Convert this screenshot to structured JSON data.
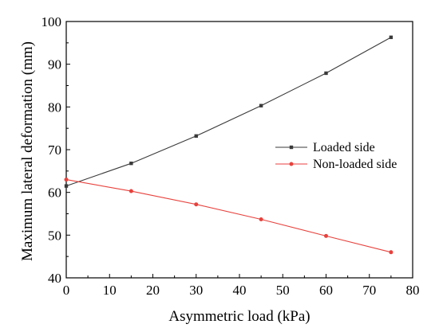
{
  "chart_data": {
    "type": "line",
    "title": "",
    "xlabel": "Asymmetric load (kPa)",
    "ylabel": "Maximum lateral deformation (mm)",
    "xlim": [
      0,
      80
    ],
    "ylim": [
      40,
      100
    ],
    "xticks": [
      "0",
      "10",
      "20",
      "30",
      "40",
      "50",
      "60",
      "70",
      "80"
    ],
    "yticks": [
      "40",
      "50",
      "60",
      "70",
      "80",
      "90",
      "100"
    ],
    "grid": false,
    "legend_position": "right-middle",
    "series": [
      {
        "name": "Loaded side",
        "color": "#3a3a3a",
        "marker": "square",
        "x": [
          0,
          15,
          30,
          45,
          60,
          75
        ],
        "y": [
          61.5,
          66.8,
          73.2,
          80.3,
          87.9,
          96.3
        ]
      },
      {
        "name": "Non-loaded side",
        "color": "#e8413c",
        "marker": "circle",
        "x": [
          0,
          15,
          30,
          45,
          60,
          75
        ],
        "y": [
          63.0,
          60.3,
          57.2,
          53.7,
          49.8,
          46.0
        ]
      }
    ]
  }
}
